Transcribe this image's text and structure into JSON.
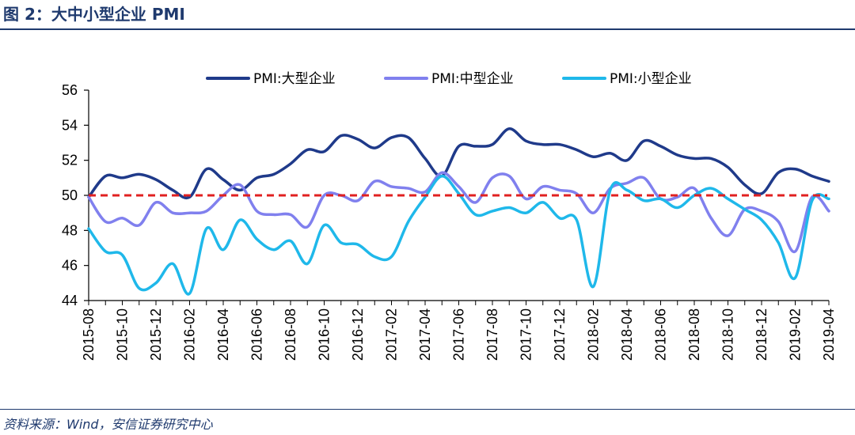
{
  "figure": {
    "title": "图 2：大中小型企业 PMI",
    "source": "资料来源：Wind，安信证券研究中心"
  },
  "chart_data": {
    "type": "line",
    "title": "",
    "xlabel": "",
    "ylabel": "",
    "ylim": [
      44,
      56
    ],
    "yticks": [
      44,
      46,
      48,
      50,
      52,
      54,
      56
    ],
    "grid": false,
    "legend_position": "top",
    "x_tick_labels": [
      "2015-08",
      "2015-10",
      "2015-12",
      "2016-02",
      "2016-04",
      "2016-06",
      "2016-08",
      "2016-10",
      "2016-12",
      "2017-02",
      "2017-04",
      "2017-06",
      "2017-08",
      "2017-10",
      "2017-12",
      "2018-02",
      "2018-04",
      "2018-06",
      "2018-08",
      "2018-10",
      "2018-12",
      "2019-02",
      "2019-04"
    ],
    "x": [
      "2015-08",
      "2015-09",
      "2015-10",
      "2015-11",
      "2015-12",
      "2016-01",
      "2016-02",
      "2016-03",
      "2016-04",
      "2016-05",
      "2016-06",
      "2016-07",
      "2016-08",
      "2016-09",
      "2016-10",
      "2016-11",
      "2016-12",
      "2017-01",
      "2017-02",
      "2017-03",
      "2017-04",
      "2017-05",
      "2017-06",
      "2017-07",
      "2017-08",
      "2017-09",
      "2017-10",
      "2017-11",
      "2017-12",
      "2018-01",
      "2018-02",
      "2018-03",
      "2018-04",
      "2018-05",
      "2018-06",
      "2018-07",
      "2018-08",
      "2018-09",
      "2018-10",
      "2018-11",
      "2018-12",
      "2019-01",
      "2019-02",
      "2019-03",
      "2019-04"
    ],
    "series": [
      {
        "name": "PMI:大型企业",
        "color": "#1f3a8a",
        "values": [
          49.9,
          51.1,
          51.0,
          51.2,
          50.9,
          50.3,
          49.9,
          51.5,
          50.9,
          50.3,
          51.0,
          51.2,
          51.8,
          52.6,
          52.5,
          53.4,
          53.2,
          52.7,
          53.3,
          53.3,
          52.1,
          51.1,
          52.8,
          52.8,
          52.9,
          53.8,
          53.1,
          52.9,
          52.9,
          52.6,
          52.2,
          52.4,
          52.0,
          53.1,
          52.8,
          52.3,
          52.1,
          52.1,
          51.6,
          50.6,
          50.1,
          51.3,
          51.5,
          51.1,
          50.8
        ]
      },
      {
        "name": "PMI:中型企业",
        "color": "#8080ee",
        "values": [
          49.9,
          48.5,
          48.7,
          48.3,
          49.6,
          49.0,
          49.0,
          49.1,
          50.0,
          50.6,
          49.1,
          48.9,
          48.9,
          48.2,
          50.0,
          50.0,
          49.7,
          50.8,
          50.5,
          50.4,
          50.2,
          51.3,
          50.5,
          49.6,
          51.0,
          51.1,
          49.8,
          50.5,
          50.3,
          50.1,
          49.0,
          50.4,
          50.7,
          51.0,
          49.8,
          49.9,
          50.4,
          48.7,
          47.7,
          49.2,
          49.1,
          48.5,
          46.8,
          49.9,
          49.1
        ]
      },
      {
        "name": "PMI:小型企业",
        "color": "#1fb8ea",
        "values": [
          48.1,
          46.8,
          46.6,
          44.7,
          45.0,
          46.1,
          44.4,
          48.1,
          46.9,
          48.6,
          47.5,
          46.9,
          47.4,
          46.1,
          48.3,
          47.3,
          47.2,
          46.5,
          46.5,
          48.5,
          49.9,
          51.1,
          50.1,
          48.9,
          49.1,
          49.3,
          49.0,
          49.6,
          48.7,
          48.6,
          44.8,
          50.3,
          50.3,
          49.7,
          49.8,
          49.3,
          50.0,
          50.4,
          49.8,
          49.2,
          48.6,
          47.3,
          45.3,
          49.7,
          49.8
        ]
      }
    ],
    "reference_line": {
      "value": 50,
      "color": "#e02020",
      "style": "dashed"
    }
  }
}
